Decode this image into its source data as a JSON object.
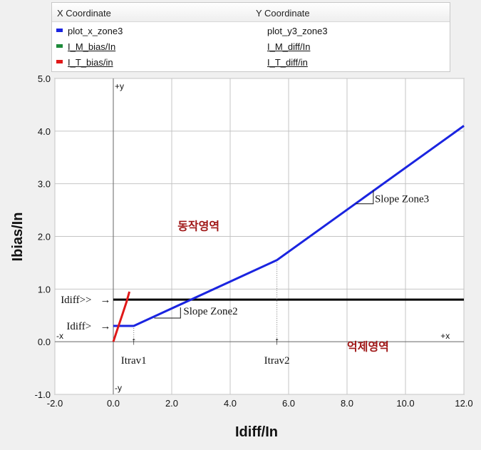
{
  "legend": {
    "x_header": "X Coordinate",
    "y_header": "Y Coordinate",
    "rows": [
      {
        "x": "plot_x_zone3",
        "y": "plot_y3_zone3",
        "color": "#1a24e0",
        "underline": false
      },
      {
        "x": "I_M_bias/In",
        "y": "I_M_diff/In",
        "color": "#1e8a3a",
        "underline": true
      },
      {
        "x": "I_T_bias/in",
        "y": "I_T_diff/in",
        "color": "#e01818",
        "underline": true
      }
    ]
  },
  "chart_data": {
    "type": "line",
    "xlabel": "Idiff/In",
    "ylabel": "Ibias/In",
    "xlim": [
      -2.0,
      12.0
    ],
    "ylim": [
      -1.0,
      5.0
    ],
    "x_ticks": [
      "-2.0",
      "0.0",
      "2.0",
      "4.0",
      "6.0",
      "8.0",
      "10.0",
      "12.0"
    ],
    "y_ticks": [
      "-1.0",
      "0.0",
      "1.0",
      "2.0",
      "3.0",
      "4.0",
      "5.0"
    ],
    "grid": true,
    "series": [
      {
        "name": "plot_x_zone3",
        "color": "#1a24e0",
        "x": [
          0.0,
          0.7,
          5.6,
          12.0
        ],
        "y": [
          0.3,
          0.3,
          1.55,
          4.1
        ]
      },
      {
        "name": "I_T_bias/in",
        "color": "#e01818",
        "x": [
          0.0,
          0.15,
          0.3,
          0.45,
          0.55
        ],
        "y": [
          0.0,
          0.25,
          0.5,
          0.75,
          0.95
        ]
      }
    ],
    "threshold_line": {
      "y": 0.8,
      "x_from": 0.0,
      "x_to": 12.0,
      "color": "#000000"
    },
    "axis_markers": {
      "pos_y": "+y",
      "neg_y": "-y",
      "neg_x": "-x",
      "pos_x": "+x"
    },
    "annotations": {
      "slope_zone2": "Slope Zone2",
      "slope_zone3": "Slope Zone3",
      "operate_region": "동작영역",
      "restrain_region": "억제영역",
      "idiff_high": "Idiff>>",
      "idiff_low": "Idiff>",
      "itrav1": "Itrav1",
      "itrav2": "Itrav2",
      "arrow_right": "→",
      "arrow_up": "↑"
    }
  }
}
